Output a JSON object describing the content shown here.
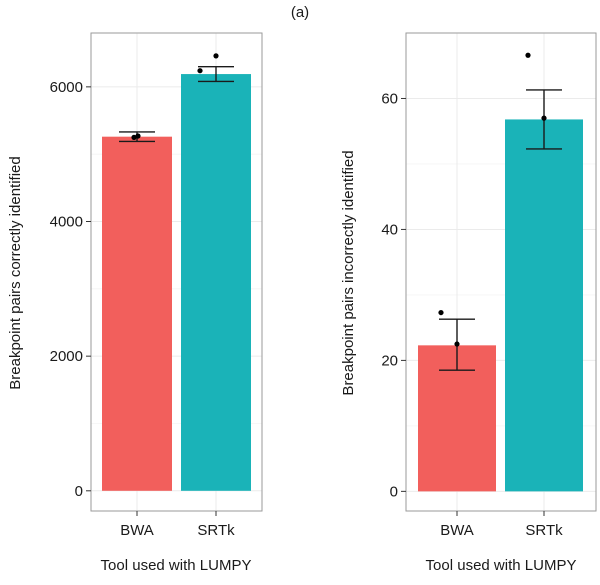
{
  "figure_title": "(a)",
  "chart_data": [
    {
      "type": "bar",
      "categories": [
        "BWA",
        "SRTk"
      ],
      "values": [
        5260,
        6190
      ],
      "error_bars": [
        [
          5190,
          5330
        ],
        [
          6080,
          6300
        ]
      ],
      "points": [
        [
          5250,
          5270
        ],
        [
          6240,
          6460
        ]
      ],
      "colors": [
        "#F25F5C",
        "#1AB3B8"
      ],
      "xlabel": "Tool used with LUMPY",
      "ylabel": "Breakpoint pairs correctly identified",
      "ylim": [
        -300,
        6800
      ],
      "yticks": [
        0,
        2000,
        4000,
        6000
      ],
      "grid": true
    },
    {
      "type": "bar",
      "categories": [
        "BWA",
        "SRTk"
      ],
      "values": [
        22.3,
        56.8
      ],
      "error_bars": [
        [
          18.5,
          26.3
        ],
        [
          52.3,
          61.3
        ]
      ],
      "points": [
        [
          27.3,
          22.5
        ],
        [
          66.6,
          57.0
        ]
      ],
      "colors": [
        "#F25F5C",
        "#1AB3B8"
      ],
      "xlabel": "Tool used with LUMPY",
      "ylabel": "Breakpoint pairs incorrectly identified",
      "ylim": [
        -3,
        70
      ],
      "yticks": [
        0,
        20,
        40,
        60
      ],
      "grid": true
    }
  ]
}
